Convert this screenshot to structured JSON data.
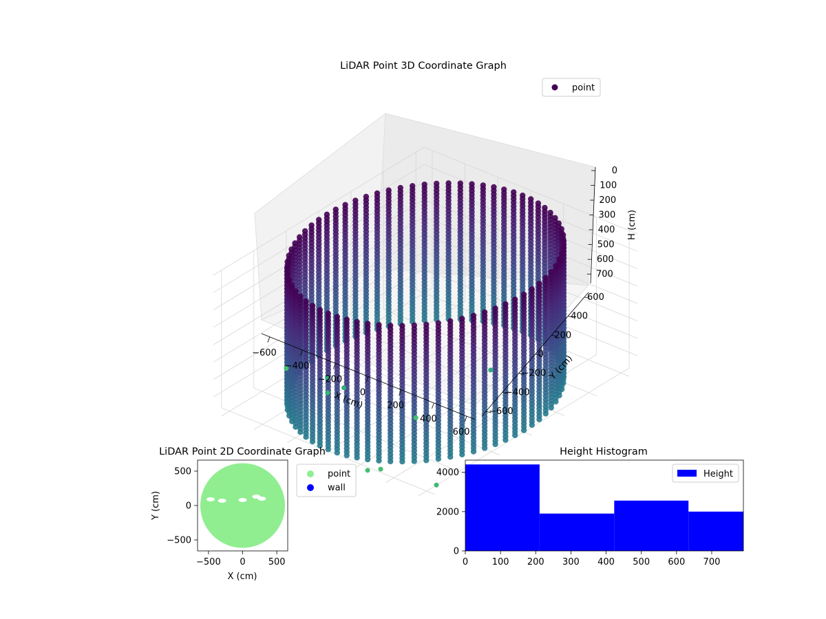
{
  "chart_data": [
    {
      "type": "scatter",
      "projection": "3d",
      "title": "LiDAR Point 3D Coordinate Graph",
      "xlabel": "X (cm)",
      "ylabel": "Y (cm)",
      "zlabel": "H (cm)",
      "x_ticks": [
        "−600",
        "−400",
        "−200",
        "0",
        "200",
        "400",
        "600"
      ],
      "y_ticks": [
        "−600",
        "−400",
        "−200",
        "0",
        "200",
        "400",
        "600"
      ],
      "z_ticks": [
        "0",
        "100",
        "200",
        "300",
        "400",
        "500",
        "600",
        "700"
      ],
      "xlim": [
        -650,
        650
      ],
      "ylim": [
        -650,
        650
      ],
      "zlim": [
        0,
        790
      ],
      "z_inverted": true,
      "colormap": "viridis",
      "grid": true,
      "legend": {
        "placement": "upper-right",
        "entries": [
          {
            "label": "point",
            "color": "#440154"
          }
        ]
      },
      "shape": {
        "description": "cylindrical wall of points",
        "radius": 600,
        "height": [
          0,
          790
        ]
      },
      "outliers": [
        {
          "x": -650,
          "y": -200,
          "z": 790
        },
        {
          "x": 260,
          "y": -620,
          "z": 790
        },
        {
          "x": 300,
          "y": -580,
          "z": 790
        },
        {
          "x": 620,
          "y": -560,
          "z": 770
        },
        {
          "x": 120,
          "y": -180,
          "z": 790
        },
        {
          "x": -300,
          "y": -300,
          "z": 740
        },
        {
          "x": -250,
          "y": -250,
          "z": 720
        },
        {
          "x": -350,
          "y": -250,
          "z": 700
        },
        {
          "x": 200,
          "y": 200,
          "z": 700
        }
      ]
    },
    {
      "type": "scatter",
      "title": "LiDAR Point 2D Coordinate Graph",
      "xlabel": "X (cm)",
      "ylabel": "Y (cm)",
      "x_ticks": [
        "−500",
        "0",
        "500"
      ],
      "y_ticks": [
        "−500",
        "0",
        "500"
      ],
      "xlim": [
        -660,
        660
      ],
      "ylim": [
        -660,
        660
      ],
      "legend": {
        "placement": "outside-right",
        "entries": [
          {
            "label": "point",
            "color": "#90ee90"
          },
          {
            "label": "wall",
            "color": "#0000ff"
          }
        ]
      },
      "series": [
        {
          "name": "point",
          "shape": "filled disk",
          "radius": 620,
          "color": "#90ee90"
        },
        {
          "name": "wall",
          "color": "#0000ff"
        }
      ],
      "gaps": [
        {
          "x": -470,
          "y": 90
        },
        {
          "x": -300,
          "y": 70
        },
        {
          "x": 0,
          "y": 80
        },
        {
          "x": 200,
          "y": 130
        },
        {
          "x": 280,
          "y": 100
        }
      ]
    },
    {
      "type": "bar",
      "title": "Height Histogram",
      "xlabel": "",
      "ylabel": "",
      "x_ticks": [
        "0",
        "100",
        "200",
        "300",
        "400",
        "500",
        "600",
        "700"
      ],
      "y_ticks": [
        "0",
        "2000",
        "4000"
      ],
      "xlim": [
        0,
        790
      ],
      "ylim": [
        0,
        4620
      ],
      "color": "#0000ff",
      "legend": {
        "placement": "upper-right",
        "entries": [
          {
            "label": "Height",
            "color": "#0000ff"
          }
        ]
      },
      "bins": [
        {
          "x0": 0,
          "x1": 211,
          "count": 4400
        },
        {
          "x0": 211,
          "x1": 423,
          "count": 1900
        },
        {
          "x0": 423,
          "x1": 634,
          "count": 2560
        },
        {
          "x0": 634,
          "x1": 790,
          "count": 2000
        }
      ]
    }
  ]
}
